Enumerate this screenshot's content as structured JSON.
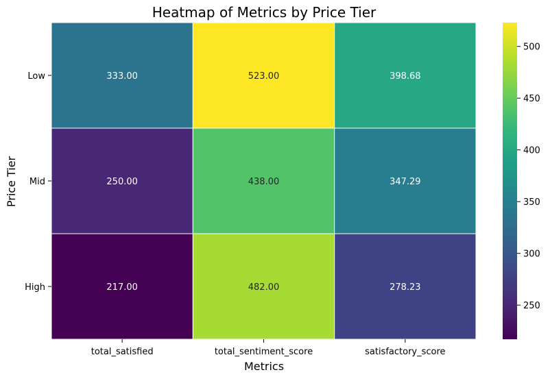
{
  "chart_data": {
    "type": "heatmap",
    "title": "Heatmap of Metrics by Price Tier",
    "xlabel": "Metrics",
    "ylabel": "Price Tier",
    "x_categories": [
      "total_satisfied",
      "total_sentiment_score",
      "satisfactory_score"
    ],
    "y_categories": [
      "Low",
      "Mid",
      "High"
    ],
    "values": [
      [
        333.0,
        523.0,
        398.68
      ],
      [
        250.0,
        438.0,
        347.29
      ],
      [
        217.0,
        482.0,
        278.23
      ]
    ],
    "value_labels": [
      [
        "333.00",
        "523.00",
        "398.68"
      ],
      [
        "250.00",
        "438.00",
        "347.29"
      ],
      [
        "217.00",
        "482.00",
        "278.23"
      ]
    ],
    "colormap": "viridis",
    "color_range": [
      217,
      523
    ],
    "colorbar_ticks": [
      250,
      300,
      350,
      400,
      450,
      500
    ],
    "grid": false,
    "legend": "colorbar-right",
    "cell_border_color": "#ffffff"
  }
}
